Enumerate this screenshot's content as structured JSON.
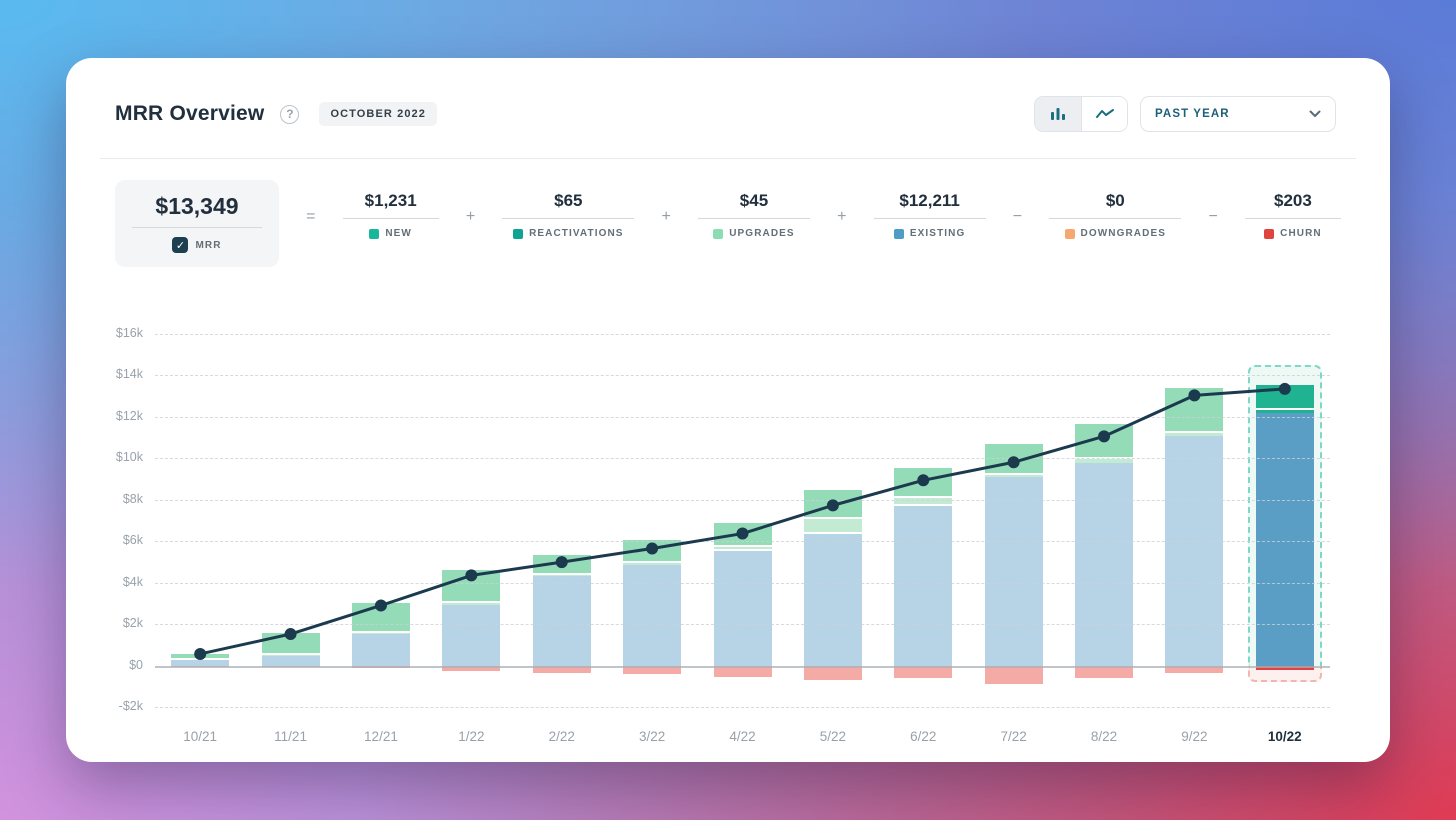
{
  "header": {
    "title": "MRR Overview",
    "help_tooltip": "?",
    "period_badge": "OCTOBER 2022",
    "view_toggle": {
      "options": [
        "bar-chart",
        "line-chart"
      ],
      "active": "bar-chart",
      "icon_color": "#1b6e80"
    },
    "range_selector": {
      "value": "PAST YEAR"
    }
  },
  "equation": {
    "result": {
      "value": "$13,349",
      "label": "MRR",
      "checkbox_checked": true,
      "checkbox_color": "#1d4050"
    },
    "operators": [
      "=",
      "+",
      "+",
      "+",
      "−",
      "−"
    ],
    "terms": [
      {
        "value": "$1,231",
        "label": "NEW",
        "color": "#16b79c"
      },
      {
        "value": "$65",
        "label": "REACTIVATIONS",
        "color": "#0fa394"
      },
      {
        "value": "$45",
        "label": "UPGRADES",
        "color": "#8cdcb4"
      },
      {
        "value": "$12,211",
        "label": "EXISTING",
        "color": "#4f9dc5"
      },
      {
        "value": "$0",
        "label": "DOWNGRADES",
        "color": "#f7a871"
      },
      {
        "value": "$203",
        "label": "CHURN",
        "color": "#e0443e"
      }
    ]
  },
  "chart_data": {
    "type": "bar",
    "subtype": "stacked-bars-with-mrr-line",
    "title": "MRR Overview",
    "x": [
      "10/21",
      "11/21",
      "12/21",
      "1/22",
      "2/22",
      "3/22",
      "4/22",
      "5/22",
      "6/22",
      "7/22",
      "8/22",
      "9/22",
      "10/22"
    ],
    "series": [
      {
        "name": "EXISTING",
        "values": [
          250,
          480,
          1500,
          2900,
          4300,
          4830,
          5510,
          6330,
          7680,
          9080,
          9760,
          11060,
          12211
        ],
        "color": "#b7d3e6",
        "color_current": "#5a9ec6"
      },
      {
        "name": "REACTIVATIONS",
        "values": [
          0,
          0,
          0,
          0,
          0,
          0,
          0,
          0,
          0,
          0,
          0,
          0,
          65
        ],
        "color": "#49c2ae",
        "color_current": "#1fb392"
      },
      {
        "name": "UPGRADES",
        "values": [
          30,
          50,
          60,
          140,
          90,
          130,
          200,
          720,
          420,
          110,
          190,
          160,
          45
        ],
        "color": "#c3ebd4",
        "color_current": "#1fb392"
      },
      {
        "name": "NEW",
        "values": [
          300,
          1020,
          1480,
          1550,
          970,
          1080,
          1190,
          1400,
          1420,
          1490,
          1690,
          2160,
          1231
        ],
        "color": "#94dbb8",
        "color_current": "#1fb392"
      },
      {
        "name": "CHURN",
        "values": [
          -20,
          -30,
          -140,
          -240,
          -370,
          -390,
          -530,
          -720,
          -580,
          -870,
          -580,
          -340,
          -203
        ],
        "color": "#f4aba6",
        "color_current": "#e04343"
      }
    ],
    "line": {
      "name": "MRR",
      "values": [
        560,
        1520,
        2900,
        4350,
        4990,
        5650,
        6370,
        7730,
        8940,
        9810,
        11060,
        13040,
        13349
      ],
      "color": "#1c3a4e"
    },
    "y_ticks": [
      {
        "label": "$16k",
        "value": 16000
      },
      {
        "label": "$14k",
        "value": 14000
      },
      {
        "label": "$12k",
        "value": 12000
      },
      {
        "label": "$10k",
        "value": 10000
      },
      {
        "label": "$8k",
        "value": 8000
      },
      {
        "label": "$6k",
        "value": 6000
      },
      {
        "label": "$4k",
        "value": 4000
      },
      {
        "label": "$2k",
        "value": 2000
      },
      {
        "label": "$0",
        "value": 0
      },
      {
        "label": "-$2k",
        "value": -2000
      }
    ],
    "ylim": [
      -2000,
      16000
    ],
    "grid": "dashed-horizontal",
    "highlight_month": "10/22",
    "highlight_colors": {
      "border": "#7fd8c6",
      "bg": "#e8f6f2",
      "churn_border": "#f2b5b0",
      "churn_bg": "#fdf1ef"
    }
  }
}
